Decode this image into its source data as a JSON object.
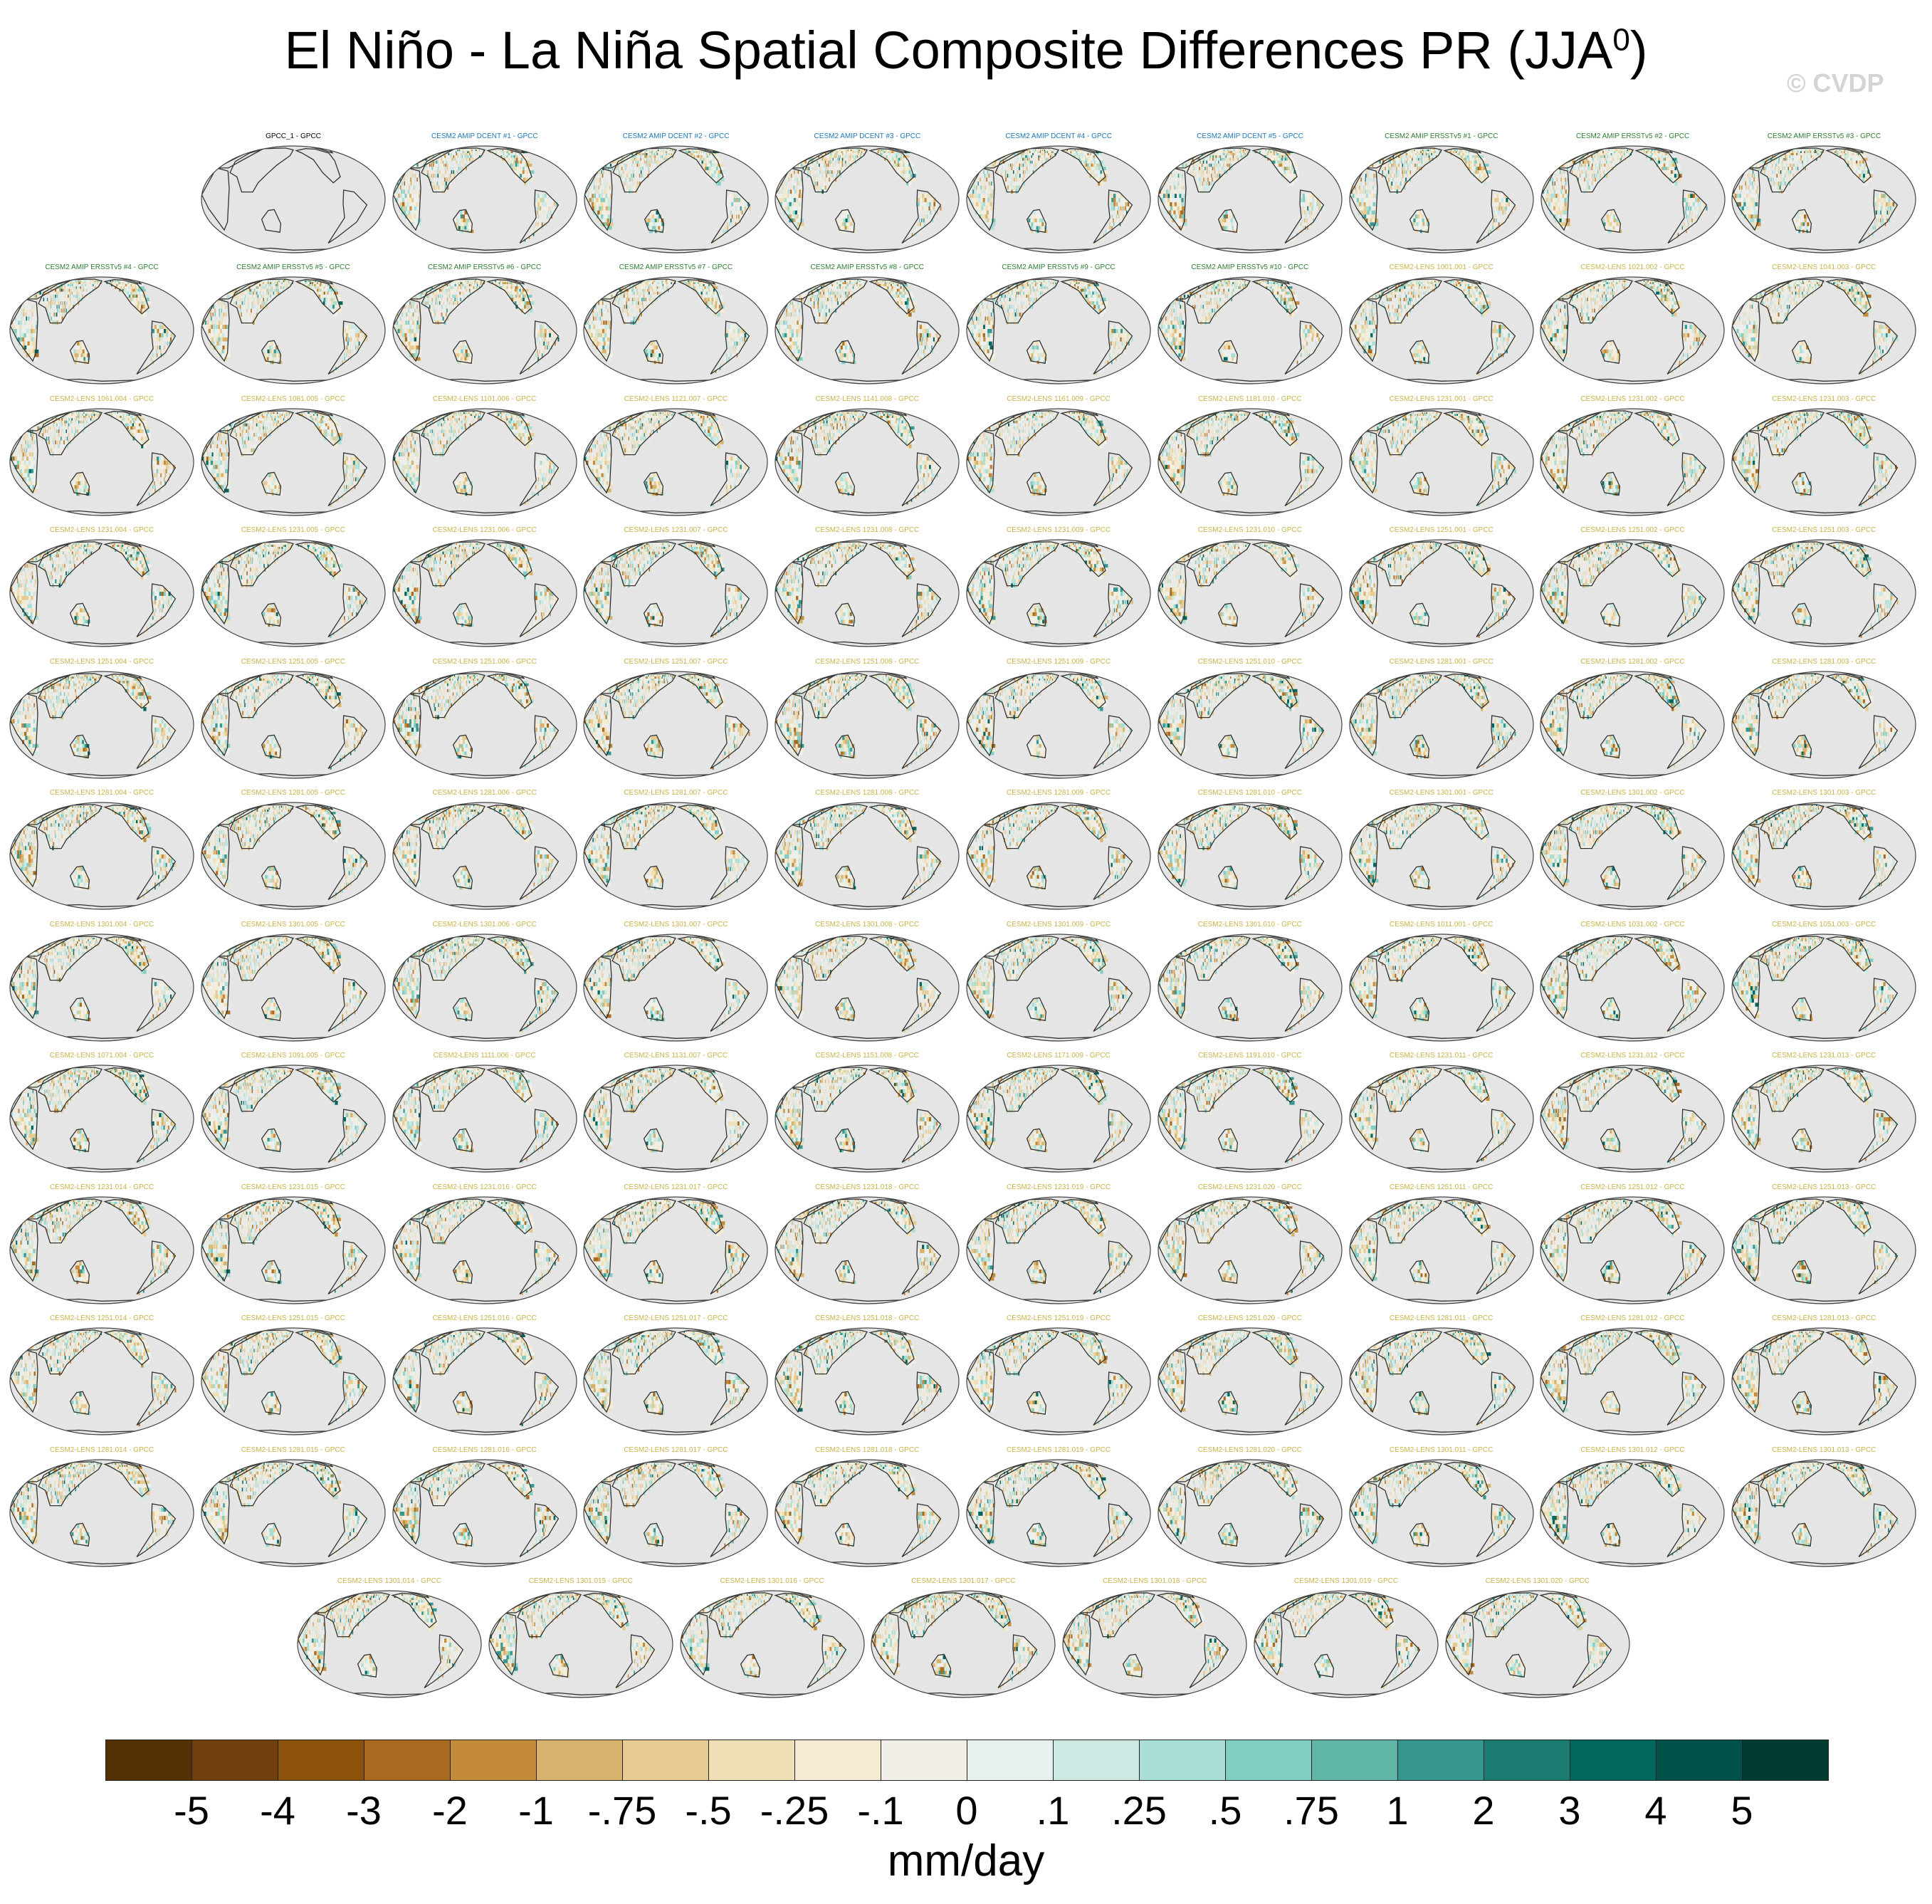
{
  "title": "El Niño - La Niña Spatial Composite Differences PR (JJA",
  "title_sup": "0",
  "title_close": ")",
  "watermark": "© CVDP",
  "colors": {
    "ocean": "#e5e5e5",
    "coast": "#333333",
    "obs_title": "#000000",
    "dcent_title": "#1f78b4",
    "ersst_title": "#2e7d32",
    "lens_title": "#c9b34a"
  },
  "rows": [
    [
      "GPCC_1 - GPCC",
      "CESM2 AMIP DCENT #1 - GPCC",
      "CESM2 AMIP DCENT #2 - GPCC",
      "CESM2 AMIP DCENT #3 - GPCC",
      "CESM2 AMIP DCENT #4 - GPCC",
      "CESM2 AMIP DCENT #5 - GPCC",
      "CESM2 AMIP ERSSTv5 #1 - GPCC",
      "CESM2 AMIP ERSSTv5 #2 - GPCC",
      "CESM2 AMIP ERSSTv5 #3 - GPCC"
    ],
    [
      "CESM2 AMIP ERSSTv5 #4 - GPCC",
      "CESM2 AMIP ERSSTv5 #5 - GPCC",
      "CESM2 AMIP ERSSTv5 #6 - GPCC",
      "CESM2 AMIP ERSSTv5 #7 - GPCC",
      "CESM2 AMIP ERSSTv5 #8 - GPCC",
      "CESM2 AMIP ERSSTv5 #9 - GPCC",
      "CESM2 AMIP ERSSTv5 #10 - GPCC",
      "CESM2-LENS 1001.001 - GPCC",
      "CESM2-LENS 1021.002 - GPCC",
      "CESM2-LENS 1041.003 - GPCC"
    ],
    [
      "CESM2-LENS 1061.004 - GPCC",
      "CESM2-LENS 1081.005 - GPCC",
      "CESM2-LENS 1101.006 - GPCC",
      "CESM2-LENS 1121.007 - GPCC",
      "CESM2-LENS 1141.008 - GPCC",
      "CESM2-LENS 1161.009 - GPCC",
      "CESM2-LENS 1181.010 - GPCC",
      "CESM2-LENS 1231.001 - GPCC",
      "CESM2-LENS 1231.002 - GPCC",
      "CESM2-LENS 1231.003 - GPCC"
    ],
    [
      "CESM2-LENS 1231.004 - GPCC",
      "CESM2-LENS 1231.005 - GPCC",
      "CESM2-LENS 1231.006 - GPCC",
      "CESM2-LENS 1231.007 - GPCC",
      "CESM2-LENS 1231.008 - GPCC",
      "CESM2-LENS 1231.009 - GPCC",
      "CESM2-LENS 1231.010 - GPCC",
      "CESM2-LENS 1251.001 - GPCC",
      "CESM2-LENS 1251.002 - GPCC",
      "CESM2-LENS 1251.003 - GPCC"
    ],
    [
      "CESM2-LENS 1251.004 - GPCC",
      "CESM2-LENS 1251.005 - GPCC",
      "CESM2-LENS 1251.006 - GPCC",
      "CESM2-LENS 1251.007 - GPCC",
      "CESM2-LENS 1251.008 - GPCC",
      "CESM2-LENS 1251.009 - GPCC",
      "CESM2-LENS 1251.010 - GPCC",
      "CESM2-LENS 1281.001 - GPCC",
      "CESM2-LENS 1281.002 - GPCC",
      "CESM2-LENS 1281.003 - GPCC"
    ],
    [
      "CESM2-LENS 1281.004 - GPCC",
      "CESM2-LENS 1281.005 - GPCC",
      "CESM2-LENS 1281.006 - GPCC",
      "CESM2-LENS 1281.007 - GPCC",
      "CESM2-LENS 1281.008 - GPCC",
      "CESM2-LENS 1281.009 - GPCC",
      "CESM2-LENS 1281.010 - GPCC",
      "CESM2-LENS 1301.001 - GPCC",
      "CESM2-LENS 1301.002 - GPCC",
      "CESM2-LENS 1301.003 - GPCC"
    ],
    [
      "CESM2-LENS 1301.004 - GPCC",
      "CESM2-LENS 1301.005 - GPCC",
      "CESM2-LENS 1301.006 - GPCC",
      "CESM2-LENS 1301.007 - GPCC",
      "CESM2-LENS 1301.008 - GPCC",
      "CESM2-LENS 1301.009 - GPCC",
      "CESM2-LENS 1301.010 - GPCC",
      "CESM2-LENS 1011.001 - GPCC",
      "CESM2-LENS 1031.002 - GPCC",
      "CESM2-LENS 1051.003 - GPCC"
    ],
    [
      "CESM2-LENS 1071.004 - GPCC",
      "CESM2-LENS 1091.005 - GPCC",
      "CESM2-LENS 1111.006 - GPCC",
      "CESM2-LENS 1131.007 - GPCC",
      "CESM2-LENS 1151.008 - GPCC",
      "CESM2-LENS 1171.009 - GPCC",
      "CESM2-LENS 1191.010 - GPCC",
      "CESM2-LENS 1231.011 - GPCC",
      "CESM2-LENS 1231.012 - GPCC",
      "CESM2-LENS 1231.013 - GPCC"
    ],
    [
      "CESM2-LENS 1231.014 - GPCC",
      "CESM2-LENS 1231.015 - GPCC",
      "CESM2-LENS 1231.016 - GPCC",
      "CESM2-LENS 1231.017 - GPCC",
      "CESM2-LENS 1231.018 - GPCC",
      "CESM2-LENS 1231.019 - GPCC",
      "CESM2-LENS 1231.020 - GPCC",
      "CESM2-LENS 1251.011 - GPCC",
      "CESM2-LENS 1251.012 - GPCC",
      "CESM2-LENS 1251.013 - GPCC"
    ],
    [
      "CESM2-LENS 1251.014 - GPCC",
      "CESM2-LENS 1251.015 - GPCC",
      "CESM2-LENS 1251.016 - GPCC",
      "CESM2-LENS 1251.017 - GPCC",
      "CESM2-LENS 1251.018 - GPCC",
      "CESM2-LENS 1251.019 - GPCC",
      "CESM2-LENS 1251.020 - GPCC",
      "CESM2-LENS 1281.011 - GPCC",
      "CESM2-LENS 1281.012 - GPCC",
      "CESM2-LENS 1281.013 - GPCC"
    ],
    [
      "CESM2-LENS 1281.014 - GPCC",
      "CESM2-LENS 1281.015 - GPCC",
      "CESM2-LENS 1281.016 - GPCC",
      "CESM2-LENS 1281.017 - GPCC",
      "CESM2-LENS 1281.018 - GPCC",
      "CESM2-LENS 1281.019 - GPCC",
      "CESM2-LENS 1281.020 - GPCC",
      "CESM2-LENS 1301.011 - GPCC",
      "CESM2-LENS 1301.012 - GPCC",
      "CESM2-LENS 1301.013 - GPCC"
    ],
    [
      "CESM2-LENS 1301.014 - GPCC",
      "CESM2-LENS 1301.015 - GPCC",
      "CESM2-LENS 1301.016 - GPCC",
      "CESM2-LENS 1301.017 - GPCC",
      "CESM2-LENS 1301.018 - GPCC",
      "CESM2-LENS 1301.019 - GPCC",
      "CESM2-LENS 1301.020 - GPCC"
    ]
  ],
  "colorbar": {
    "colors": [
      "#543005",
      "#6f3f0d",
      "#8c510a",
      "#a86b1f",
      "#c38b3a",
      "#d7b26c",
      "#e6cb91",
      "#efdfb7",
      "#f5ebd2",
      "#f2efe9",
      "#e8f1ef",
      "#cde9e4",
      "#a8ded4",
      "#80cdc1",
      "#5fb5a6",
      "#35978f",
      "#1b7c72",
      "#01665e",
      "#00524b",
      "#003c30"
    ],
    "labels": [
      "-5",
      "-4",
      "-3",
      "-2",
      "-1",
      "-.75",
      "-.5",
      "-.25",
      "-.1",
      "0",
      ".1",
      ".25",
      ".5",
      ".75",
      "1",
      "2",
      "3",
      "4",
      "5"
    ],
    "units": "mm/day"
  }
}
